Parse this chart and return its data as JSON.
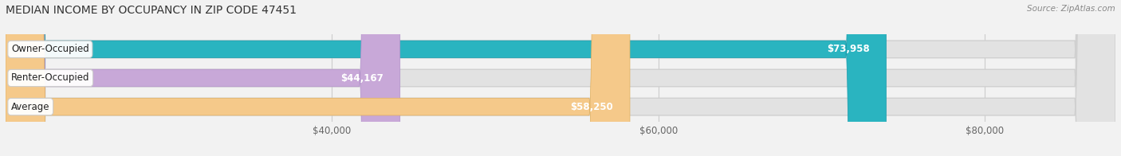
{
  "title": "MEDIAN INCOME BY OCCUPANCY IN ZIP CODE 47451",
  "source": "Source: ZipAtlas.com",
  "categories": [
    "Owner-Occupied",
    "Renter-Occupied",
    "Average"
  ],
  "values": [
    73958,
    44167,
    58250
  ],
  "labels": [
    "$73,958",
    "$44,167",
    "$58,250"
  ],
  "bar_colors": [
    "#2ab4c0",
    "#c8a8d8",
    "#f5c98a"
  ],
  "bar_edge_colors": [
    "#1a9aaa",
    "#b090c8",
    "#e0b060"
  ],
  "background_color": "#f2f2f2",
  "bar_bg_color": "#e2e2e2",
  "bar_bg_edge_color": "#d0d0d0",
  "xlim_data": [
    20000,
    88000
  ],
  "xticks": [
    40000,
    60000,
    80000
  ],
  "xtick_labels": [
    "$40,000",
    "$60,000",
    "$80,000"
  ],
  "figsize": [
    14.06,
    1.96
  ],
  "dpi": 100,
  "label_fontsize": 8.5,
  "value_label_color_inside": "#ffffff",
  "value_label_color_outside": "#555555",
  "value_threshold": 50000
}
